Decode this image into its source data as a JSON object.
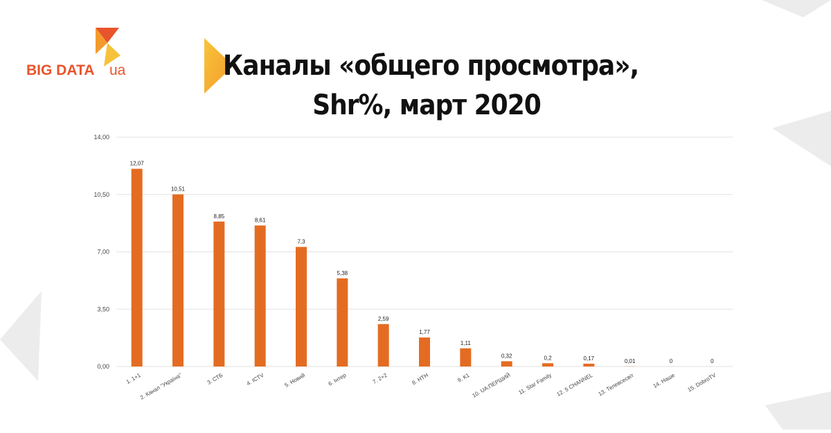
{
  "logo": {
    "text": "BIG DATA",
    "suffix": "ua"
  },
  "chart_data": {
    "type": "bar",
    "title": "Каналы «общего просмотра»,",
    "subtitle": "Shr%, март 2020",
    "categories": [
      "1. 1+1",
      "2. Канал \"Україна\"",
      "3. СТБ",
      "4. ICTV",
      "5. Новий",
      "6. Інтер",
      "7. 2+2",
      "8. НТН",
      "9. К1",
      "10. UA:ПЕРШИЙ",
      "11. Star Family",
      "12. 5 CHANNEL",
      "13. Телевсесвіт",
      "14. Наше",
      "15. DobroTV"
    ],
    "values": [
      12.07,
      10.51,
      8.85,
      8.61,
      7.3,
      5.38,
      2.59,
      1.77,
      1.11,
      0.32,
      0.2,
      0.17,
      0.01,
      0,
      0
    ],
    "value_labels": [
      "12,07",
      "10,51",
      "8,85",
      "8,61",
      "7,3",
      "5,38",
      "2,59",
      "1,77",
      "1,11",
      "0,32",
      "0,2",
      "0,17",
      "0,01",
      "0",
      "0"
    ],
    "color": "#e46c22",
    "ylim": [
      0,
      14
    ],
    "yticks": [
      {
        "value": 0,
        "label": "0,00"
      },
      {
        "value": 3.5,
        "label": "3,50"
      },
      {
        "value": 7,
        "label": "7,00"
      },
      {
        "value": 10.5,
        "label": "10,50"
      },
      {
        "value": 14,
        "label": "14,00"
      }
    ],
    "grid": true
  }
}
